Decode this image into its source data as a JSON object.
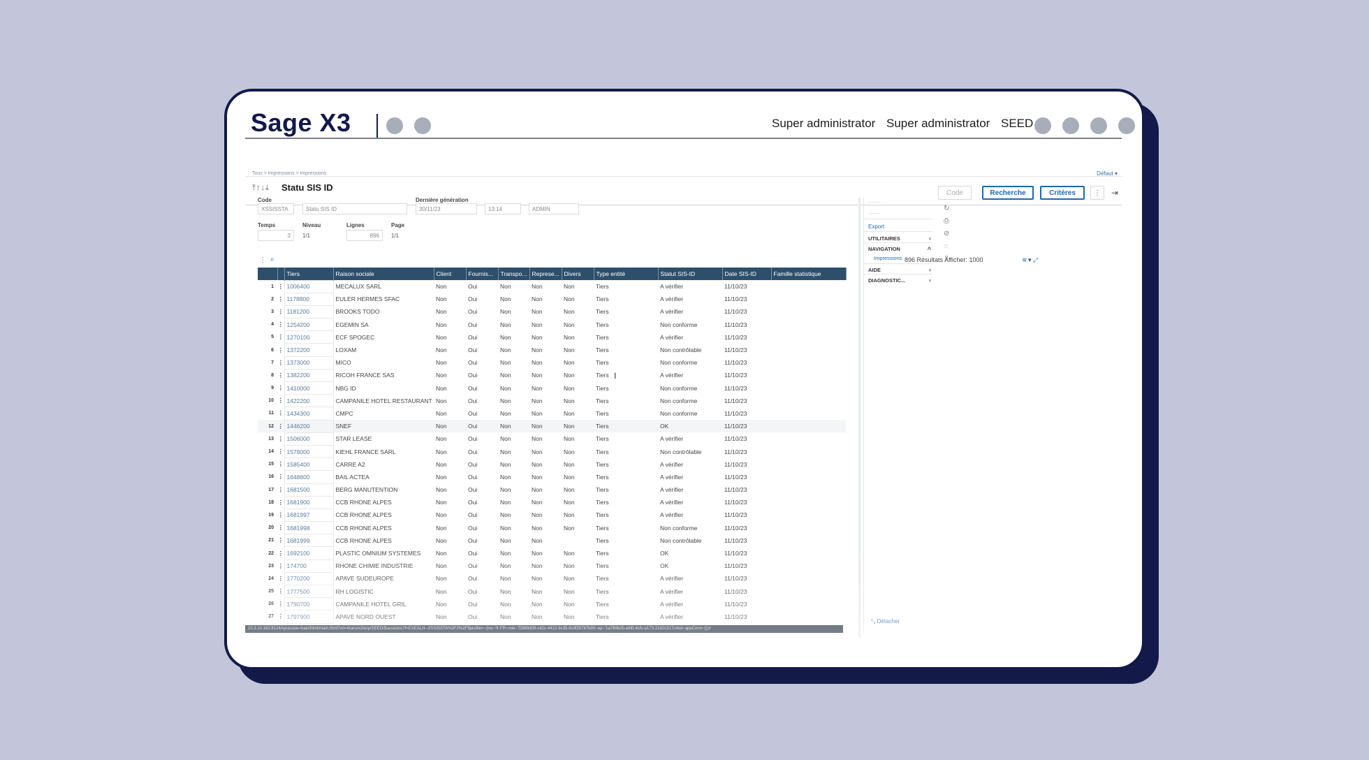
{
  "brand": "Sage X3",
  "user": {
    "name1": "Super administrator",
    "name2": "Super administrator",
    "folder": "SEED"
  },
  "breadcrumb": "Tous  >  Impressions  >  Impressions",
  "defaut": "Défaut",
  "page_title": "Statu SIS ID",
  "buttons": {
    "code": "Code",
    "recherche": "Recherche",
    "criteres": "Critères"
  },
  "form": {
    "code_label": "Code",
    "code_value": "XSSISSTA",
    "code_desc": "Statu SIS ID",
    "derniere_label": "Dernière génération",
    "date": "30/11/23",
    "time": "13:14",
    "user": "ADMIN",
    "temps_label": "Temps",
    "temps_value": "3",
    "niveau_label": "Niveau",
    "niveau_value": "1/1",
    "lignes_label": "Lignes",
    "lignes_value": "896",
    "page_label": "Page",
    "page_value": "1/1"
  },
  "results": {
    "count_text": "896 Résultats",
    "afficher_label": "Afficher:",
    "afficher_value": "1000"
  },
  "table": {
    "columns": [
      "Tiers",
      "Raison sociale",
      "Client",
      "Fournis...",
      "Transpo...",
      "Represe...",
      "Divers",
      "Type entité",
      "Statut SIS-ID",
      "Date SIS-ID",
      "Famille statistique"
    ],
    "rows": [
      [
        "1",
        "1006400",
        "MECALUX SARL",
        "Non",
        "Oui",
        "Non",
        "Non",
        "Non",
        "Tiers",
        "A vérifier",
        "11/10/23"
      ],
      [
        "2",
        "1178800",
        "EULER HERMES SFAC",
        "Non",
        "Oui",
        "Non",
        "Non",
        "Non",
        "Tiers",
        "A vérifier",
        "11/10/23"
      ],
      [
        "3",
        "1181200",
        "BROOKS TODO",
        "Non",
        "Oui",
        "Non",
        "Non",
        "Non",
        "Tiers",
        "A vérifier",
        "11/10/23"
      ],
      [
        "4",
        "1254200",
        "EGEMIN SA",
        "Non",
        "Oui",
        "Non",
        "Non",
        "Non",
        "Tiers",
        "Non conforme",
        "11/10/23"
      ],
      [
        "5",
        "1270100",
        "ECF SPOGEC",
        "Non",
        "Oui",
        "Non",
        "Non",
        "Non",
        "Tiers",
        "A vérifier",
        "11/10/23"
      ],
      [
        "6",
        "1372200",
        "LOXAM",
        "Non",
        "Oui",
        "Non",
        "Non",
        "Non",
        "Tiers",
        "Non contrôlable",
        "11/10/23"
      ],
      [
        "7",
        "1373000",
        "MICO",
        "Non",
        "Oui",
        "Non",
        "Non",
        "Non",
        "Tiers",
        "Non conforme",
        "11/10/23"
      ],
      [
        "8",
        "1382200",
        "RICOH FRANCE SAS",
        "Non",
        "Oui",
        "Non",
        "Non",
        "Non",
        "Tiers",
        "A vérifier",
        "11/10/23"
      ],
      [
        "9",
        "1410000",
        "NBG ID",
        "Non",
        "Oui",
        "Non",
        "Non",
        "Non",
        "Tiers",
        "Non conforme",
        "11/10/23"
      ],
      [
        "10",
        "1422200",
        "CAMPANILE HOTEL RESTAURANT",
        "Non",
        "Oui",
        "Non",
        "Non",
        "Non",
        "Tiers",
        "Non conforme",
        "11/10/23"
      ],
      [
        "11",
        "1434300",
        "CMPC",
        "Non",
        "Oui",
        "Non",
        "Non",
        "Non",
        "Tiers",
        "Non conforme",
        "11/10/23"
      ],
      [
        "12",
        "1446200",
        "SNEF",
        "Non",
        "Oui",
        "Non",
        "Non",
        "Non",
        "Tiers",
        "OK",
        "11/10/23"
      ],
      [
        "13",
        "1506000",
        "STAR LEASE",
        "Non",
        "Oui",
        "Non",
        "Non",
        "Non",
        "Tiers",
        "A vérifier",
        "11/10/23"
      ],
      [
        "14",
        "1578000",
        "KIEHL FRANCE SARL",
        "Non",
        "Oui",
        "Non",
        "Non",
        "Non",
        "Tiers",
        "Non contrôlable",
        "11/10/23"
      ],
      [
        "15",
        "1585400",
        "CARRE A2",
        "Non",
        "Oui",
        "Non",
        "Non",
        "Non",
        "Tiers",
        "A vérifier",
        "11/10/23"
      ],
      [
        "16",
        "1648800",
        "BAIL ACTEA",
        "Non",
        "Oui",
        "Non",
        "Non",
        "Non",
        "Tiers",
        "A vérifier",
        "11/10/23"
      ],
      [
        "17",
        "1681500",
        "BERG MANUTENTION",
        "Non",
        "Oui",
        "Non",
        "Non",
        "Non",
        "Tiers",
        "A vérifier",
        "11/10/23"
      ],
      [
        "18",
        "1681900",
        "CCB RHONE ALPES",
        "Non",
        "Oui",
        "Non",
        "Non",
        "Non",
        "Tiers",
        "A vérifier",
        "11/10/23"
      ],
      [
        "19",
        "1681997",
        "CCB RHONE ALPES",
        "Non",
        "Oui",
        "Non",
        "Non",
        "Non",
        "Tiers",
        "A vérifier",
        "11/10/23"
      ],
      [
        "20",
        "1681998",
        "CCB RHONE ALPES",
        "Non",
        "Oui",
        "Non",
        "Non",
        "Non",
        "Tiers",
        "Non conforme",
        "11/10/23"
      ],
      [
        "21",
        "1681999",
        "CCB RHONE ALPES",
        "Non",
        "Oui",
        "Non",
        "Non",
        "",
        "Tiers",
        "Non contrôlable",
        "11/10/23"
      ],
      [
        "22",
        "1692100",
        "PLASTIC OMNIUM SYSTEMES",
        "Non",
        "Oui",
        "Non",
        "Non",
        "Non",
        "Tiers",
        "OK",
        "11/10/23"
      ],
      [
        "23",
        "174700",
        "RHONE CHIMIE INDUSTRIE",
        "Non",
        "Oui",
        "Non",
        "Non",
        "Non",
        "Tiers",
        "OK",
        "11/10/23"
      ],
      [
        "24",
        "1770200",
        "APAVE SUDEUROPE",
        "Non",
        "Oui",
        "Non",
        "Non",
        "Non",
        "Tiers",
        "A vérifier",
        "11/10/23"
      ],
      [
        "25",
        "1777500",
        "RH LOGISTIC",
        "Non",
        "Oui",
        "Non",
        "Non",
        "Non",
        "Tiers",
        "A vérifier",
        "11/10/23"
      ],
      [
        "26",
        "1790700",
        "CAMPANILE HOTEL GRIL",
        "Non",
        "Oui",
        "Non",
        "Non",
        "Non",
        "Tiers",
        "A vérifier",
        "11/10/23"
      ],
      [
        "27",
        "1797900",
        "APAVE NORD OUEST",
        "Non",
        "Oui",
        "Non",
        "Non",
        "Non",
        "Tiers",
        "A vérifier",
        "11/10/23"
      ]
    ]
  },
  "side": {
    "export": "Export",
    "utilitaires": "UTILITAIRES",
    "navigation": "NAVIGATION",
    "impressions": "Impressions",
    "aide": "AIDE",
    "diagnostic": "DIAGNOSTIC...",
    "detacher": "Détacher"
  },
  "status_url": "10.3.10.162:8124/syracuse-main/html/main.html?url=/trans/x3/erp/SEED/$sessions?f=EXEALH--XSSISSTA%2F2%2F$profile=~(loc~'fr-FR~role~'f2889d09-c42c-4412-9c35-8c9f25787b90~ep~'1a789b2b-afd0-4cfc-a173-2182c317c4ed~appConn~())#"
}
